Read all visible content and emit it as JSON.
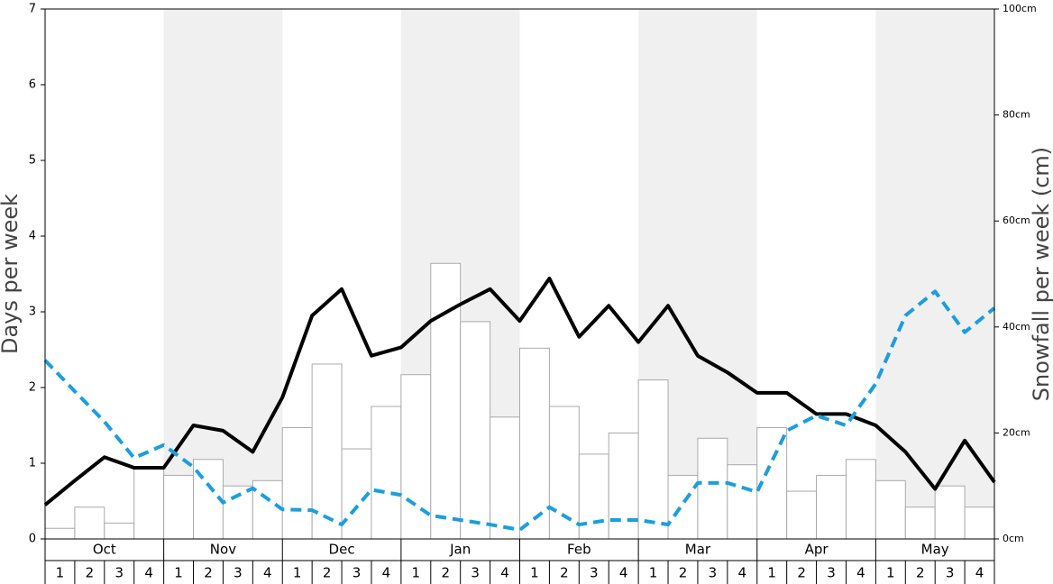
{
  "chart_data": {
    "type": "bar",
    "y_label": "Days per week",
    "y2_label": "Snowfall per week (cm)",
    "months": [
      "Oct",
      "Nov",
      "Dec",
      "Jan",
      "Feb",
      "Mar",
      "Apr",
      "May"
    ],
    "shaded_months": [
      false,
      true,
      false,
      true,
      false,
      true,
      false,
      true
    ],
    "categories": [
      "1",
      "2",
      "3",
      "4",
      "1",
      "2",
      "3",
      "4",
      "1",
      "2",
      "3",
      "4",
      "1",
      "2",
      "3",
      "4",
      "1",
      "2",
      "3",
      "4",
      "1",
      "2",
      "3",
      "4",
      "1",
      "2",
      "3",
      "4",
      "1",
      "2",
      "3",
      "4"
    ],
    "ylim": [
      0,
      7
    ],
    "yticks": [
      0,
      1,
      2,
      3,
      4,
      5,
      6,
      7
    ],
    "y2lim": [
      0,
      100
    ],
    "y2ticks": [
      {
        "value": 0,
        "label": "0cm"
      },
      {
        "value": 20,
        "label": "20cm"
      },
      {
        "value": 40,
        "label": "40cm"
      },
      {
        "value": 60,
        "label": "60cm"
      },
      {
        "value": 80,
        "label": "80cm"
      },
      {
        "value": 100,
        "label": "100cm"
      }
    ],
    "bar_series": {
      "axis": "y2",
      "color": "#ffffff",
      "edge": "#aaaaaa",
      "values": [
        2,
        6,
        3,
        13.5,
        12,
        15,
        10,
        11,
        21,
        33,
        17,
        25,
        31,
        52,
        41,
        23,
        36,
        25,
        16,
        20,
        30,
        12,
        19,
        14,
        21,
        9,
        12,
        15,
        11,
        6,
        10,
        6
      ]
    },
    "line_series": [
      {
        "color": "#000000",
        "dashed": false,
        "values": [
          0.45,
          0.77,
          1.08,
          0.94,
          0.94,
          1.5,
          1.43,
          1.15,
          1.87,
          2.95,
          3.3,
          2.42,
          2.53,
          2.88,
          3.1,
          3.3,
          2.88,
          3.44,
          2.67,
          3.08,
          2.6,
          3.08,
          2.42,
          2.2,
          1.93,
          1.93,
          1.65,
          1.65,
          1.5,
          1.15,
          0.66,
          1.3,
          0.75
        ]
      },
      {
        "color": "#1a9ee0",
        "dashed": true,
        "values": [
          2.36,
          1.95,
          1.55,
          1.07,
          1.24,
          0.95,
          0.48,
          0.67,
          0.39,
          0.38,
          0.19,
          0.65,
          0.58,
          0.31,
          0.25,
          0.19,
          0.12,
          0.42,
          0.19,
          0.25,
          0.25,
          0.19,
          0.74,
          0.74,
          0.62,
          1.43,
          1.63,
          1.5,
          2.05,
          2.95,
          3.27,
          2.73,
          3.05
        ]
      }
    ]
  }
}
